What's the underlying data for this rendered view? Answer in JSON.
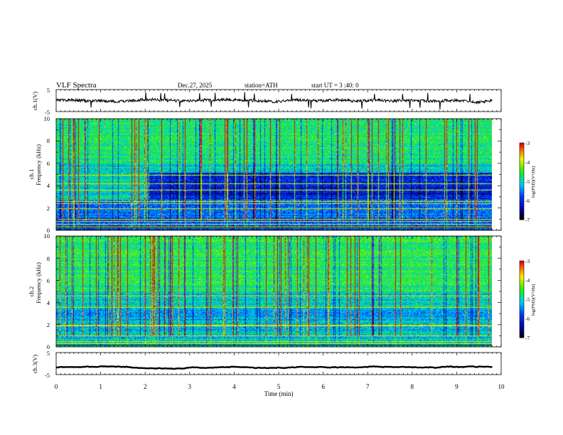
{
  "header": {
    "title": "VLF  Spectra",
    "date": "Dec.27, 2025",
    "station": "station=ATH",
    "start_ut": "start  UT  =   3  :40: 0"
  },
  "colors": {
    "background": "#ffffff",
    "axis": "#000000",
    "spectrogram_low": "#0000a0",
    "spectrogram_mid": "#00e000",
    "spectrogram_high": "#ff0000"
  },
  "chart_data": [
    {
      "type": "line",
      "id": "ch1_waveform",
      "ylabel": "ch.1(V)",
      "ylim": [
        -5,
        5
      ],
      "yticks": [
        "5",
        "-5"
      ],
      "xlim": [
        0,
        10
      ],
      "trace_mean": 0,
      "trace_amplitude": 1.2
    },
    {
      "type": "heatmap",
      "id": "ch1_spectrogram",
      "ylabel_channel": "ch.1",
      "ylabel": "Frequency  (kHz)",
      "ylim": [
        0,
        10
      ],
      "yticks": [
        "0",
        "2",
        "4",
        "6",
        "8",
        "10"
      ],
      "xlim": [
        0,
        10
      ],
      "data_end_min": 9.8,
      "colorbar": {
        "label": "log(PSD)(V²/Hz)",
        "range": [
          -7,
          -3
        ],
        "ticks": [
          "-3",
          "-4",
          "-5",
          "-6",
          "-7"
        ]
      },
      "bands_khz": [
        0.3,
        0.6,
        0.8,
        1.0,
        2.0,
        2.4,
        2.6,
        3.6,
        4.2,
        5.0
      ],
      "level_shift_min": 2.1
    },
    {
      "type": "heatmap",
      "id": "ch2_spectrogram",
      "ylabel_channel": "ch.2",
      "ylabel": "Frequency  (kHz)",
      "ylim": [
        0,
        10
      ],
      "yticks": [
        "0",
        "2",
        "4",
        "6",
        "8",
        "10"
      ],
      "xlim": [
        0,
        10
      ],
      "data_end_min": 9.8,
      "colorbar": {
        "label": "log(PSD)(V²/Hz)",
        "range": [
          -7,
          -3
        ],
        "ticks": [
          "-3",
          "-4",
          "-5",
          "-6",
          "-7"
        ]
      },
      "bands_khz": [
        0.3,
        0.5,
        1.0,
        1.9,
        2.0,
        3.6,
        4.6
      ],
      "level_shift_min": 2.1
    },
    {
      "type": "line",
      "id": "ch3_waveform",
      "ylabel": "ch.3(V)",
      "ylim": [
        -5,
        5
      ],
      "yticks": [
        "5",
        "-5"
      ],
      "xlim": [
        0,
        10
      ],
      "xticks": [
        "0",
        "1",
        "2",
        "3",
        "4",
        "5",
        "6",
        "7",
        "8",
        "9",
        "10"
      ],
      "xlabel": "Time  (min)",
      "trace_mean": -1.8,
      "trace_amplitude": 0.2
    }
  ]
}
